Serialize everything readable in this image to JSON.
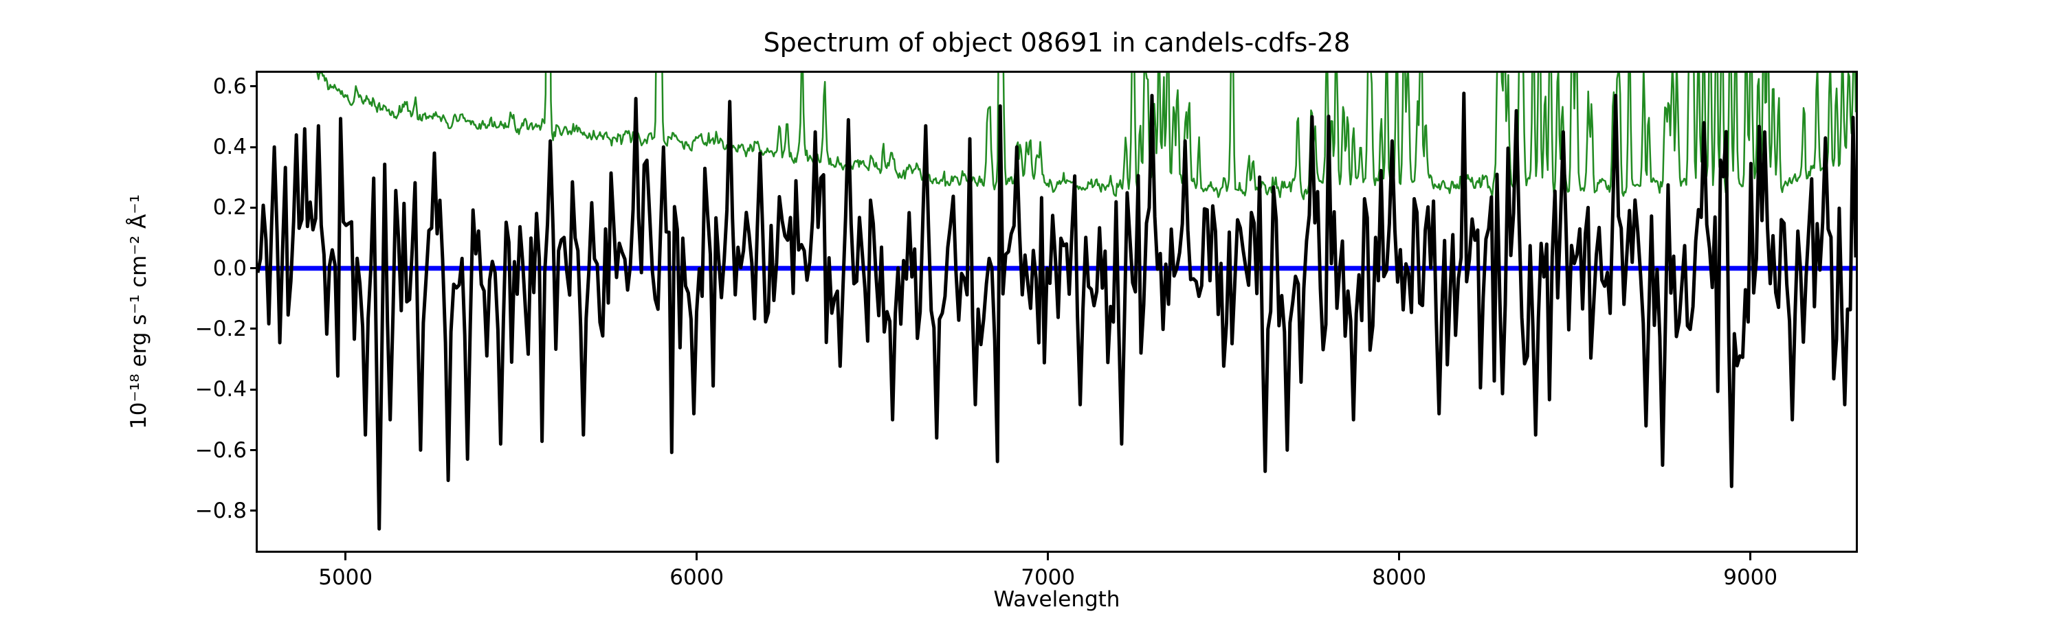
{
  "figure": {
    "title": "Spectrum of object 08691 in candels-cdfs-28",
    "xlabel": "Wavelength",
    "ylabel": "10⁻¹⁸ erg s⁻¹ cm⁻² Å⁻¹"
  },
  "chart_data": {
    "type": "line",
    "title": "Spectrum of object 08691 in candels-cdfs-28",
    "xlabel": "Wavelength",
    "ylabel": "10^-18 erg s^-1 cm^-2 Å^-1",
    "xlim": [
      4750,
      9300
    ],
    "ylim": [
      -0.932,
      0.645
    ],
    "xticks": [
      5000,
      6000,
      7000,
      8000,
      9000
    ],
    "xtick_labels": [
      "5000",
      "6000",
      "7000",
      "8000",
      "9000"
    ],
    "yticks": [
      0.6,
      0.4,
      0.2,
      0.0,
      -0.2,
      -0.4,
      -0.6,
      -0.8
    ],
    "ytick_labels": [
      "0.6",
      "0.4",
      "0.2",
      "0.0",
      "−0.2",
      "−0.4",
      "−0.6",
      "−0.8"
    ],
    "grid": false,
    "legend": "none",
    "background": "#ffffff",
    "series": [
      {
        "name": "zero level",
        "style": "constant",
        "color": "#0000ff",
        "linewidth": 7,
        "y": 0.0
      },
      {
        "name": "noise spectrum",
        "style": "continuum_plus_skylines",
        "color": "#228B22",
        "linewidth": 2.5,
        "n_points": 1500,
        "seed": 7,
        "jitter_sigma": 0.012,
        "jitter_ar": 0.62,
        "sky_line_sigma_A": 3.2,
        "continuum": [
          [
            4750,
            0.82
          ],
          [
            5000,
            0.565
          ],
          [
            5160,
            0.52
          ],
          [
            5400,
            0.475
          ],
          [
            5600,
            0.452
          ],
          [
            5850,
            0.43
          ],
          [
            6100,
            0.4
          ],
          [
            6300,
            0.37
          ],
          [
            6430,
            0.336
          ],
          [
            6650,
            0.305
          ],
          [
            6800,
            0.295
          ],
          [
            7000,
            0.282
          ],
          [
            7200,
            0.275
          ],
          [
            7400,
            0.272
          ],
          [
            7600,
            0.268
          ],
          [
            7800,
            0.272
          ],
          [
            8000,
            0.285
          ],
          [
            8150,
            0.282
          ],
          [
            8300,
            0.276
          ],
          [
            8500,
            0.272
          ],
          [
            8700,
            0.262
          ],
          [
            8900,
            0.268
          ],
          [
            9050,
            0.272
          ],
          [
            9150,
            0.3
          ],
          [
            9250,
            0.34
          ],
          [
            9300,
            0.42
          ]
        ],
        "sky_lines": [
          [
            5199,
            0.06
          ],
          [
            5577,
            2.0
          ],
          [
            5890,
            1.2
          ],
          [
            5896,
            0.8
          ],
          [
            6235,
            0.1
          ],
          [
            6257,
            0.12
          ],
          [
            6300,
            0.3
          ],
          [
            6364,
            0.24
          ],
          [
            6498,
            0.07
          ],
          [
            6533,
            0.1
          ],
          [
            6554,
            0.08
          ],
          [
            6563,
            0.06
          ],
          [
            6827,
            0.18
          ],
          [
            6834,
            0.22
          ],
          [
            6864,
            1.2
          ],
          [
            6871,
            0.4
          ],
          [
            6912,
            0.15
          ],
          [
            6923,
            0.16
          ],
          [
            6939,
            0.13
          ],
          [
            6949,
            0.12
          ],
          [
            6969,
            0.1
          ],
          [
            6978,
            0.12
          ],
          [
            7222,
            0.12
          ],
          [
            7240,
            0.35
          ],
          [
            7244,
            0.4
          ],
          [
            7262,
            0.2
          ],
          [
            7276,
            0.45
          ],
          [
            7284,
            0.3
          ],
          [
            7303,
            0.25
          ],
          [
            7316,
            0.5
          ],
          [
            7329,
            0.35
          ],
          [
            7341,
            0.6
          ],
          [
            7358,
            0.3
          ],
          [
            7369,
            0.4
          ],
          [
            7392,
            0.25
          ],
          [
            7402,
            0.3
          ],
          [
            7430,
            0.15
          ],
          [
            7524,
            0.6
          ],
          [
            7571,
            0.12
          ],
          [
            7584,
            0.1
          ],
          [
            7712,
            0.25
          ],
          [
            7750,
            0.3
          ],
          [
            7760,
            0.2
          ],
          [
            7794,
            0.45
          ],
          [
            7808,
            0.25
          ],
          [
            7821,
            0.5
          ],
          [
            7841,
            0.3
          ],
          [
            7853,
            0.25
          ],
          [
            7870,
            0.2
          ],
          [
            7890,
            0.15
          ],
          [
            7913,
            0.55
          ],
          [
            7921,
            0.35
          ],
          [
            7949,
            0.25
          ],
          [
            7964,
            0.5
          ],
          [
            7993,
            0.45
          ],
          [
            8014,
            0.55
          ],
          [
            8025,
            0.45
          ],
          [
            8052,
            0.25
          ],
          [
            8062,
            0.55
          ],
          [
            8075,
            0.2
          ],
          [
            8281,
            0.55
          ],
          [
            8289,
            0.4
          ],
          [
            8299,
            0.5
          ],
          [
            8310,
            0.3
          ],
          [
            8344,
            0.7
          ],
          [
            8352,
            0.4
          ],
          [
            8382,
            0.55
          ],
          [
            8399,
            0.6
          ],
          [
            8415,
            0.3
          ],
          [
            8430,
            0.6
          ],
          [
            8452,
            0.45
          ],
          [
            8465,
            0.3
          ],
          [
            8493,
            0.6
          ],
          [
            8504,
            0.5
          ],
          [
            8538,
            0.3
          ],
          [
            8548,
            0.25
          ],
          [
            8610,
            0.35
          ],
          [
            8620,
            0.3
          ],
          [
            8627,
            0.35
          ],
          [
            8655,
            0.5
          ],
          [
            8696,
            0.4
          ],
          [
            8710,
            0.2
          ],
          [
            8758,
            0.35
          ],
          [
            8767,
            0.3
          ],
          [
            8778,
            0.45
          ],
          [
            8791,
            0.4
          ],
          [
            8827,
            0.65
          ],
          [
            8836,
            0.55
          ],
          [
            8852,
            0.5
          ],
          [
            8867,
            0.55
          ],
          [
            8885,
            0.7
          ],
          [
            8903,
            0.6
          ],
          [
            8919,
            0.65
          ],
          [
            8943,
            0.6
          ],
          [
            8958,
            0.5
          ],
          [
            8988,
            0.55
          ],
          [
            9002,
            0.6
          ],
          [
            9023,
            0.4
          ],
          [
            9038,
            0.55
          ],
          [
            9049,
            0.5
          ],
          [
            9065,
            0.4
          ],
          [
            9080,
            0.3
          ],
          [
            9152,
            0.25
          ],
          [
            9190,
            0.3
          ],
          [
            9227,
            0.35
          ],
          [
            9245,
            0.3
          ],
          [
            9262,
            0.35
          ],
          [
            9280,
            0.3
          ],
          [
            9295,
            0.35
          ]
        ]
      },
      {
        "name": "object flux",
        "style": "gaussian_noise",
        "color": "#000000",
        "linewidth": 5,
        "n_points": 580,
        "seed": 20891,
        "baseline": 0.0,
        "clip": [
          -0.87,
          0.585
        ],
        "noise_sigma_envelope": [
          [
            4750,
            0.2
          ],
          [
            5100,
            0.19
          ],
          [
            5500,
            0.165
          ],
          [
            6000,
            0.155
          ],
          [
            6500,
            0.15
          ],
          [
            7000,
            0.15
          ],
          [
            7500,
            0.16
          ],
          [
            8000,
            0.17
          ],
          [
            8600,
            0.18
          ],
          [
            9300,
            0.19
          ]
        ],
        "spikes": [
          [
            4800,
            0.4
          ],
          [
            4860,
            0.44
          ],
          [
            4882,
            0.46
          ],
          [
            4925,
            0.47
          ],
          [
            5060,
            -0.55
          ],
          [
            5092,
            -0.86
          ],
          [
            5130,
            -0.5
          ],
          [
            5210,
            -0.6
          ],
          [
            5250,
            0.38
          ],
          [
            5290,
            -0.7
          ],
          [
            5345,
            -0.63
          ],
          [
            5440,
            -0.58
          ],
          [
            5580,
            0.42
          ],
          [
            5680,
            -0.55
          ],
          [
            5830,
            0.56
          ],
          [
            5905,
            0.4
          ],
          [
            5990,
            -0.48
          ],
          [
            6090,
            0.55
          ],
          [
            6180,
            0.38
          ],
          [
            6340,
            0.45
          ],
          [
            6435,
            0.49
          ],
          [
            6560,
            -0.5
          ],
          [
            6650,
            0.47
          ],
          [
            6680,
            -0.56
          ],
          [
            6790,
            -0.45
          ],
          [
            6910,
            0.4
          ],
          [
            7090,
            -0.45
          ],
          [
            7210,
            -0.58
          ],
          [
            7300,
            0.57
          ],
          [
            7390,
            0.42
          ],
          [
            7615,
            -0.67
          ],
          [
            7680,
            -0.6
          ],
          [
            7750,
            0.5
          ],
          [
            7870,
            -0.5
          ],
          [
            7980,
            0.42
          ],
          [
            8110,
            -0.48
          ],
          [
            8333,
            0.52
          ],
          [
            8390,
            -0.55
          ],
          [
            8470,
            0.45
          ],
          [
            8620,
            0.57
          ],
          [
            8700,
            -0.52
          ],
          [
            8750,
            -0.65
          ],
          [
            8870,
            0.48
          ],
          [
            8950,
            -0.72
          ],
          [
            9040,
            0.45
          ],
          [
            9120,
            -0.5
          ],
          [
            9210,
            0.43
          ],
          [
            9270,
            -0.45
          ]
        ]
      }
    ]
  }
}
